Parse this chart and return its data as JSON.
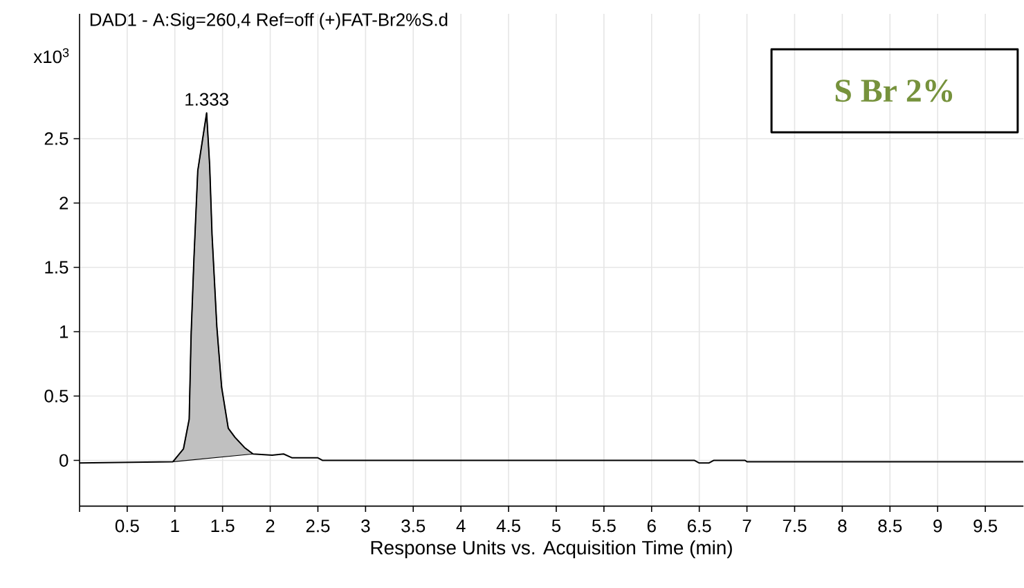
{
  "chart_data": {
    "type": "line",
    "title": "DAD1 - A:Sig=260,4  Ref=off (+)FAT-Br2%S.d",
    "xlabel": "Response Units vs. Acquisition Time (min)",
    "ylabel": "x10$^{3}$",
    "xlim": [
      0,
      9.9
    ],
    "ylim": [
      -0.355,
      3.47
    ],
    "xticks": [
      {
        "value": 0,
        "label": null
      },
      0.5,
      1,
      1.5,
      2,
      2.5,
      3,
      3.5,
      4,
      4.5,
      5,
      5.5,
      6,
      6.5,
      7,
      7.5,
      8,
      8.5,
      9,
      9.5
    ],
    "yticks": [
      0,
      0.5,
      1,
      1.5,
      2,
      2.5
    ],
    "grid": true,
    "marker": "none",
    "line_style": "solid",
    "annotations": [
      {
        "text": "1.333",
        "x": 1.333,
        "y": 2.7
      },
      "S Br 2%"
    ],
    "series": [
      {
        "type": "area",
        "color": "#c0c0c0",
        "x": [
          0.98,
          1.09,
          1.15,
          1.17,
          1.2,
          1.24,
          1.333,
          1.365,
          1.39,
          1.44,
          1.49,
          1.56,
          1.63,
          1.73,
          1.82
        ],
        "values": [
          -0.01,
          0.09,
          0.32,
          0.97,
          1.57,
          2.25,
          2.7,
          2.29,
          1.75,
          1.04,
          0.57,
          0.25,
          0.18,
          0.1,
          0.05
        ]
      },
      {
        "color": "#000000",
        "x": [
          0,
          0.98,
          1.09,
          1.15,
          1.17,
          1.2,
          1.24,
          1.333,
          1.365,
          1.39,
          1.44,
          1.49,
          1.56,
          1.63,
          1.73,
          1.82,
          2.02,
          2.14,
          2.23,
          2.5,
          2.55,
          6.45,
          6.5,
          6.6,
          6.65,
          6.98,
          7.0,
          9.9
        ],
        "values": [
          -0.02,
          -0.01,
          0.09,
          0.32,
          0.97,
          1.57,
          2.25,
          2.7,
          2.29,
          1.75,
          1.04,
          0.57,
          0.25,
          0.18,
          0.1,
          0.05,
          0.04,
          0.05,
          0.02,
          0.02,
          0,
          0,
          -0.02,
          -0.02,
          0,
          0,
          -0.01,
          -0.01
        ]
      }
    ]
  }
}
